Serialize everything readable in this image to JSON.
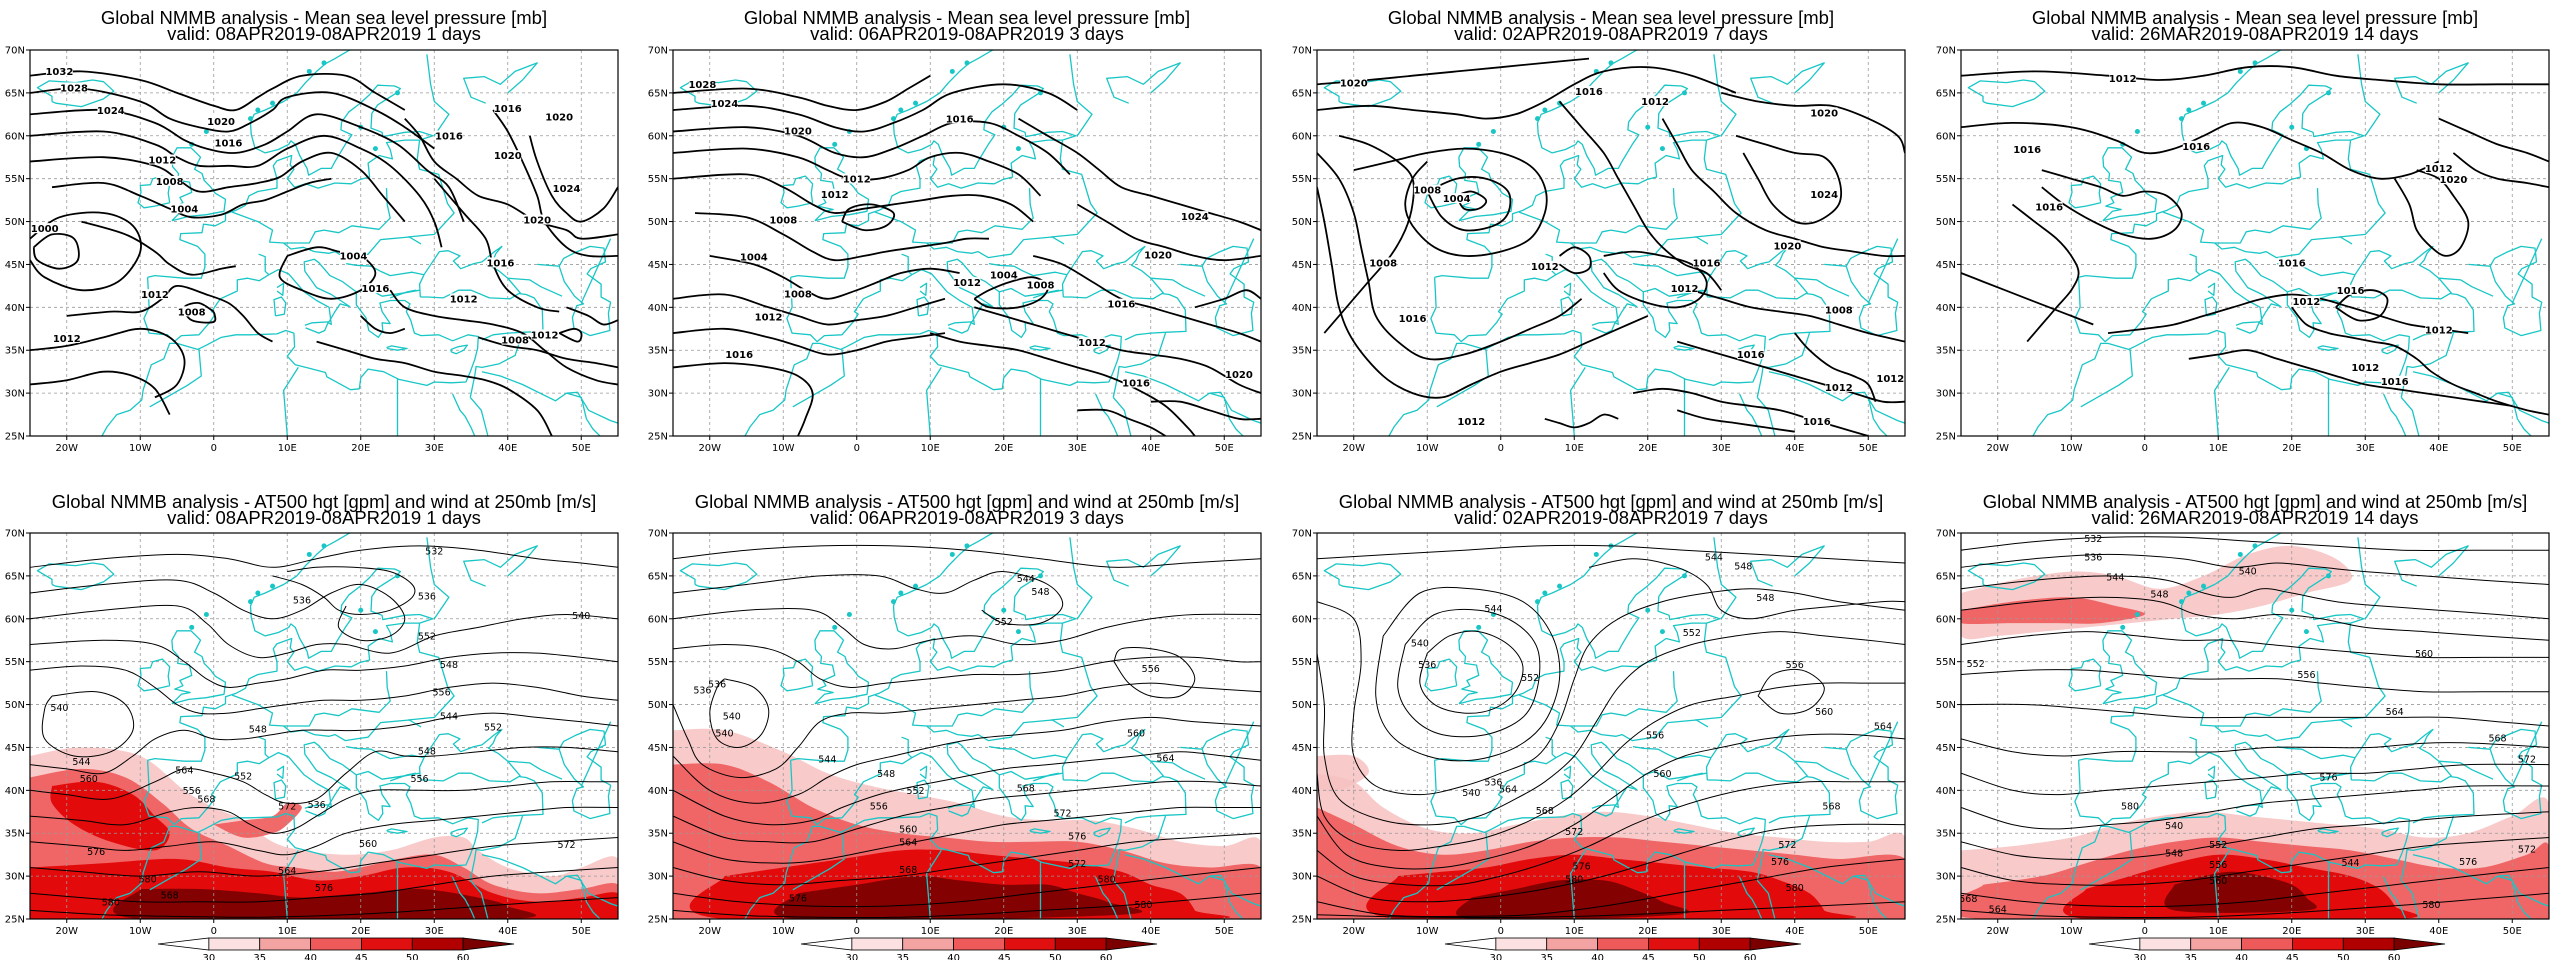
{
  "panels": [
    {
      "id": "mslp-1d",
      "title": "Global NMMB analysis - Mean sea level pressure [mb]",
      "valid": "valid: 08APR2019-08APR2019   1 days",
      "labels": [
        "1032",
        "1028",
        "1024",
        "1020",
        "1016",
        "1012",
        "1008",
        "1004",
        "1000",
        "1012",
        "1008",
        "1004",
        "1012",
        "1016",
        "1020",
        "1024",
        "1020",
        "1016",
        "1016",
        "1020",
        "1012",
        "1012",
        "1008",
        "1016"
      ]
    },
    {
      "id": "mslp-3d",
      "title": "Global NMMB analysis - Mean sea level pressure [mb]",
      "valid": "valid: 06APR2019-08APR2019   3 days",
      "labels": [
        "1028",
        "1024",
        "1020",
        "1016",
        "1012",
        "1008",
        "1004",
        "1008",
        "1012",
        "1016",
        "1024",
        "1020",
        "1016",
        "1012",
        "1008",
        "1004",
        "1012",
        "1016",
        "1020",
        "1012"
      ]
    },
    {
      "id": "mslp-7d",
      "title": "Global NMMB analysis - Mean sea level pressure [mb]",
      "valid": "valid: 02APR2019-08APR2019   7 days",
      "labels": [
        "1020",
        "1016",
        "1012",
        "1008",
        "1004",
        "1008",
        "1012",
        "1016",
        "1020",
        "1024",
        "1020",
        "1016",
        "1012",
        "1008",
        "1016",
        "1012",
        "1012",
        "1016",
        "1012"
      ]
    },
    {
      "id": "mslp-14d",
      "title": "Global NMMB analysis - Mean sea level pressure [mb]",
      "valid": "valid: 26MAR2019-08APR2019   14 days",
      "labels": [
        "1012",
        "1016",
        "1016",
        "1016",
        "1012",
        "1020",
        "1016",
        "1016",
        "1012",
        "1012",
        "1016",
        "1012"
      ]
    },
    {
      "id": "z500-1d",
      "title": "Global NMMB analysis - AT500 hgt [gpm] and wind at 250mb [m/s]",
      "valid": "valid: 08APR2019-08APR2019   1 days",
      "labels": [
        "532",
        "536",
        "540",
        "544",
        "548",
        "552",
        "556",
        "560",
        "564",
        "568",
        "572",
        "576",
        "580",
        "536",
        "540",
        "544",
        "548",
        "552",
        "556",
        "560",
        "564",
        "568",
        "572",
        "576",
        "580",
        "536",
        "548",
        "552",
        "556"
      ]
    },
    {
      "id": "z500-3d",
      "title": "Global NMMB analysis - AT500 hgt [gpm] and wind at 250mb [m/s]",
      "valid": "valid: 06APR2019-08APR2019   3 days",
      "labels": [
        "536",
        "540",
        "544",
        "548",
        "552",
        "556",
        "560",
        "564",
        "568",
        "572",
        "576",
        "580",
        "544",
        "548",
        "552",
        "556",
        "560",
        "564",
        "568",
        "572",
        "576",
        "580",
        "536",
        "540"
      ]
    },
    {
      "id": "z500-7d",
      "title": "Global NMMB analysis - AT500 hgt [gpm] and wind at 250mb [m/s]",
      "valid": "valid: 02APR2019-08APR2019   7 days",
      "labels": [
        "536",
        "540",
        "544",
        "548",
        "552",
        "556",
        "560",
        "564",
        "568",
        "572",
        "576",
        "580",
        "544",
        "548",
        "552",
        "556",
        "560",
        "564",
        "568",
        "572",
        "576",
        "580",
        "540",
        "536"
      ]
    },
    {
      "id": "z500-14d",
      "title": "Global NMMB analysis - AT500 hgt [gpm] and wind at 250mb [m/s]",
      "valid": "valid: 26MAR2019-08APR2019   14 days",
      "labels": [
        "532",
        "536",
        "540",
        "544",
        "548",
        "552",
        "556",
        "560",
        "564",
        "568",
        "572",
        "576",
        "580",
        "540",
        "544",
        "548",
        "552",
        "556",
        "560",
        "564",
        "568",
        "572",
        "576",
        "580"
      ]
    }
  ],
  "lat_ticks": [
    "70N",
    "65N",
    "60N",
    "55N",
    "50N",
    "45N",
    "40N",
    "35N",
    "30N",
    "25N"
  ],
  "lon_ticks": [
    "20W",
    "10W",
    "0",
    "10E",
    "20E",
    "30E",
    "40E",
    "50E"
  ],
  "colorbar_ticks": [
    "30",
    "35",
    "40",
    "45",
    "50",
    "60"
  ],
  "colors": {
    "contour": "#000000",
    "coast": "#19c6c6",
    "grid": "#9a9a9a",
    "jet_light": "#f7c1c1",
    "jet_mid": "#ee5a5a",
    "jet_strong": "#e00000",
    "jet_max": "#7a0000"
  }
}
